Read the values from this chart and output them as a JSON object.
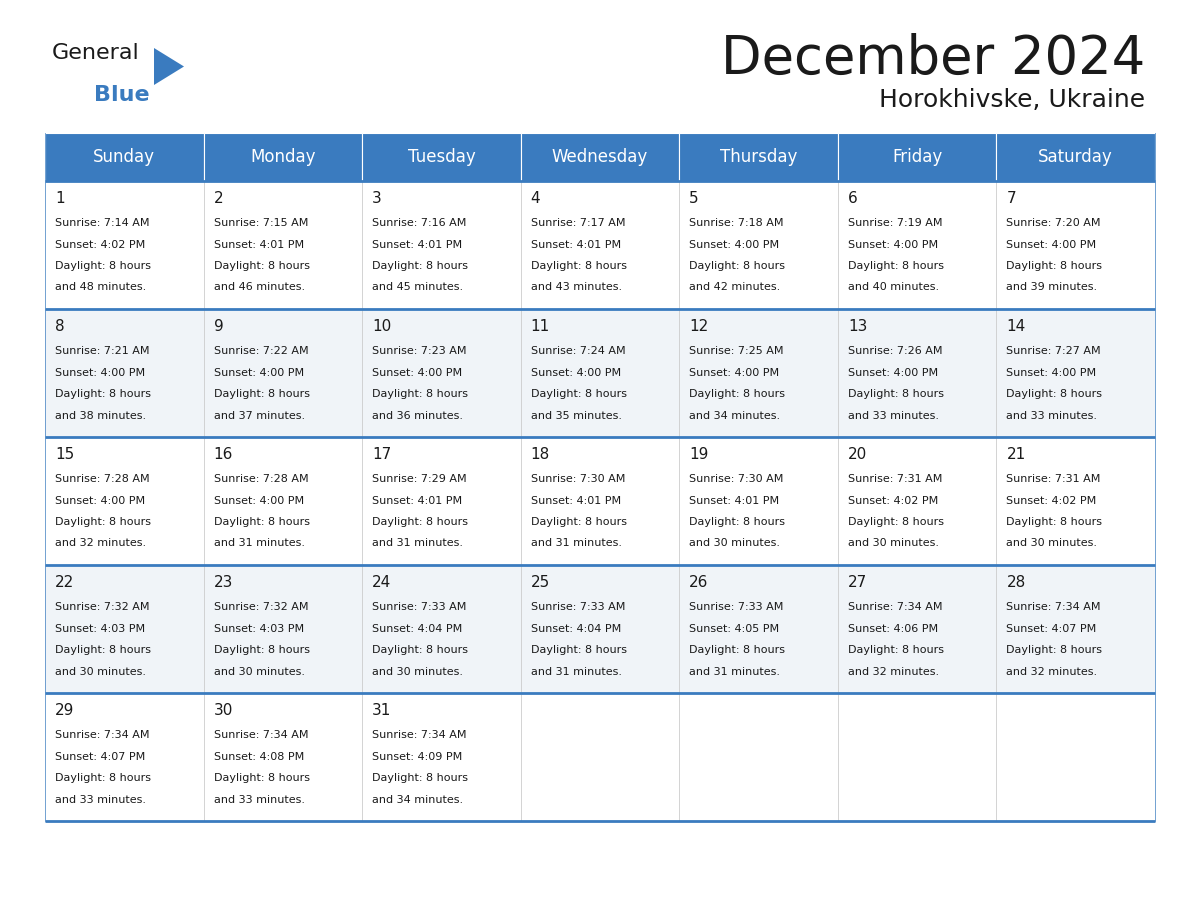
{
  "title": "December 2024",
  "subtitle": "Horokhivske, Ukraine",
  "header_color": "#3a7bbf",
  "header_text_color": "#ffffff",
  "row_bg_odd": "#f0f4f8",
  "row_bg_even": "#ffffff",
  "border_color": "#3a7bbf",
  "grid_line_color": "#cccccc",
  "day_names": [
    "Sunday",
    "Monday",
    "Tuesday",
    "Wednesday",
    "Thursday",
    "Friday",
    "Saturday"
  ],
  "days": [
    {
      "day": 1,
      "col": 0,
      "row": 0,
      "sunrise": "7:14 AM",
      "sunset": "4:02 PM",
      "daylight_mins": "48 minutes."
    },
    {
      "day": 2,
      "col": 1,
      "row": 0,
      "sunrise": "7:15 AM",
      "sunset": "4:01 PM",
      "daylight_mins": "46 minutes."
    },
    {
      "day": 3,
      "col": 2,
      "row": 0,
      "sunrise": "7:16 AM",
      "sunset": "4:01 PM",
      "daylight_mins": "45 minutes."
    },
    {
      "day": 4,
      "col": 3,
      "row": 0,
      "sunrise": "7:17 AM",
      "sunset": "4:01 PM",
      "daylight_mins": "43 minutes."
    },
    {
      "day": 5,
      "col": 4,
      "row": 0,
      "sunrise": "7:18 AM",
      "sunset": "4:00 PM",
      "daylight_mins": "42 minutes."
    },
    {
      "day": 6,
      "col": 5,
      "row": 0,
      "sunrise": "7:19 AM",
      "sunset": "4:00 PM",
      "daylight_mins": "40 minutes."
    },
    {
      "day": 7,
      "col": 6,
      "row": 0,
      "sunrise": "7:20 AM",
      "sunset": "4:00 PM",
      "daylight_mins": "39 minutes."
    },
    {
      "day": 8,
      "col": 0,
      "row": 1,
      "sunrise": "7:21 AM",
      "sunset": "4:00 PM",
      "daylight_mins": "38 minutes."
    },
    {
      "day": 9,
      "col": 1,
      "row": 1,
      "sunrise": "7:22 AM",
      "sunset": "4:00 PM",
      "daylight_mins": "37 minutes."
    },
    {
      "day": 10,
      "col": 2,
      "row": 1,
      "sunrise": "7:23 AM",
      "sunset": "4:00 PM",
      "daylight_mins": "36 minutes."
    },
    {
      "day": 11,
      "col": 3,
      "row": 1,
      "sunrise": "7:24 AM",
      "sunset": "4:00 PM",
      "daylight_mins": "35 minutes."
    },
    {
      "day": 12,
      "col": 4,
      "row": 1,
      "sunrise": "7:25 AM",
      "sunset": "4:00 PM",
      "daylight_mins": "34 minutes."
    },
    {
      "day": 13,
      "col": 5,
      "row": 1,
      "sunrise": "7:26 AM",
      "sunset": "4:00 PM",
      "daylight_mins": "33 minutes."
    },
    {
      "day": 14,
      "col": 6,
      "row": 1,
      "sunrise": "7:27 AM",
      "sunset": "4:00 PM",
      "daylight_mins": "33 minutes."
    },
    {
      "day": 15,
      "col": 0,
      "row": 2,
      "sunrise": "7:28 AM",
      "sunset": "4:00 PM",
      "daylight_mins": "32 minutes."
    },
    {
      "day": 16,
      "col": 1,
      "row": 2,
      "sunrise": "7:28 AM",
      "sunset": "4:00 PM",
      "daylight_mins": "31 minutes."
    },
    {
      "day": 17,
      "col": 2,
      "row": 2,
      "sunrise": "7:29 AM",
      "sunset": "4:01 PM",
      "daylight_mins": "31 minutes."
    },
    {
      "day": 18,
      "col": 3,
      "row": 2,
      "sunrise": "7:30 AM",
      "sunset": "4:01 PM",
      "daylight_mins": "31 minutes."
    },
    {
      "day": 19,
      "col": 4,
      "row": 2,
      "sunrise": "7:30 AM",
      "sunset": "4:01 PM",
      "daylight_mins": "30 minutes."
    },
    {
      "day": 20,
      "col": 5,
      "row": 2,
      "sunrise": "7:31 AM",
      "sunset": "4:02 PM",
      "daylight_mins": "30 minutes."
    },
    {
      "day": 21,
      "col": 6,
      "row": 2,
      "sunrise": "7:31 AM",
      "sunset": "4:02 PM",
      "daylight_mins": "30 minutes."
    },
    {
      "day": 22,
      "col": 0,
      "row": 3,
      "sunrise": "7:32 AM",
      "sunset": "4:03 PM",
      "daylight_mins": "30 minutes."
    },
    {
      "day": 23,
      "col": 1,
      "row": 3,
      "sunrise": "7:32 AM",
      "sunset": "4:03 PM",
      "daylight_mins": "30 minutes."
    },
    {
      "day": 24,
      "col": 2,
      "row": 3,
      "sunrise": "7:33 AM",
      "sunset": "4:04 PM",
      "daylight_mins": "30 minutes."
    },
    {
      "day": 25,
      "col": 3,
      "row": 3,
      "sunrise": "7:33 AM",
      "sunset": "4:04 PM",
      "daylight_mins": "31 minutes."
    },
    {
      "day": 26,
      "col": 4,
      "row": 3,
      "sunrise": "7:33 AM",
      "sunset": "4:05 PM",
      "daylight_mins": "31 minutes."
    },
    {
      "day": 27,
      "col": 5,
      "row": 3,
      "sunrise": "7:34 AM",
      "sunset": "4:06 PM",
      "daylight_mins": "32 minutes."
    },
    {
      "day": 28,
      "col": 6,
      "row": 3,
      "sunrise": "7:34 AM",
      "sunset": "4:07 PM",
      "daylight_mins": "32 minutes."
    },
    {
      "day": 29,
      "col": 0,
      "row": 4,
      "sunrise": "7:34 AM",
      "sunset": "4:07 PM",
      "daylight_mins": "33 minutes."
    },
    {
      "day": 30,
      "col": 1,
      "row": 4,
      "sunrise": "7:34 AM",
      "sunset": "4:08 PM",
      "daylight_mins": "33 minutes."
    },
    {
      "day": 31,
      "col": 2,
      "row": 4,
      "sunrise": "7:34 AM",
      "sunset": "4:09 PM",
      "daylight_mins": "34 minutes."
    }
  ]
}
